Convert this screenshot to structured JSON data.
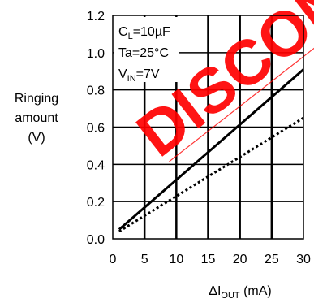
{
  "chart_data": {
    "type": "line",
    "ylabel": [
      "Ringing",
      "amount",
      "(V)"
    ],
    "xlabel": {
      "delta": "Δ",
      "main": "I",
      "sub": "OUT",
      "unit": " (mA)"
    },
    "xlim": [
      0,
      30
    ],
    "ylim": [
      0,
      1.2
    ],
    "xticks": [
      "0",
      "5",
      "10",
      "15",
      "20",
      "25",
      "30"
    ],
    "yticks": [
      "0.0",
      "0.2",
      "0.4",
      "0.6",
      "0.8",
      "1.0",
      "1.2"
    ],
    "grid": true,
    "conditions": [
      {
        "main": "C",
        "sub": "L",
        "rest": "=10µF"
      },
      {
        "main": "Ta=25°C",
        "sub": "",
        "rest": ""
      },
      {
        "main": "V",
        "sub": "IN",
        "rest": "=7V"
      }
    ],
    "series": [
      {
        "style": "solid",
        "x": [
          1,
          30
        ],
        "y": [
          0.05,
          0.91
        ]
      },
      {
        "style": "dotted",
        "x": [
          1,
          30
        ],
        "y": [
          0.04,
          0.65
        ]
      }
    ],
    "watermark": "DISCONTINUED",
    "watermark_color": "#ff0000"
  }
}
